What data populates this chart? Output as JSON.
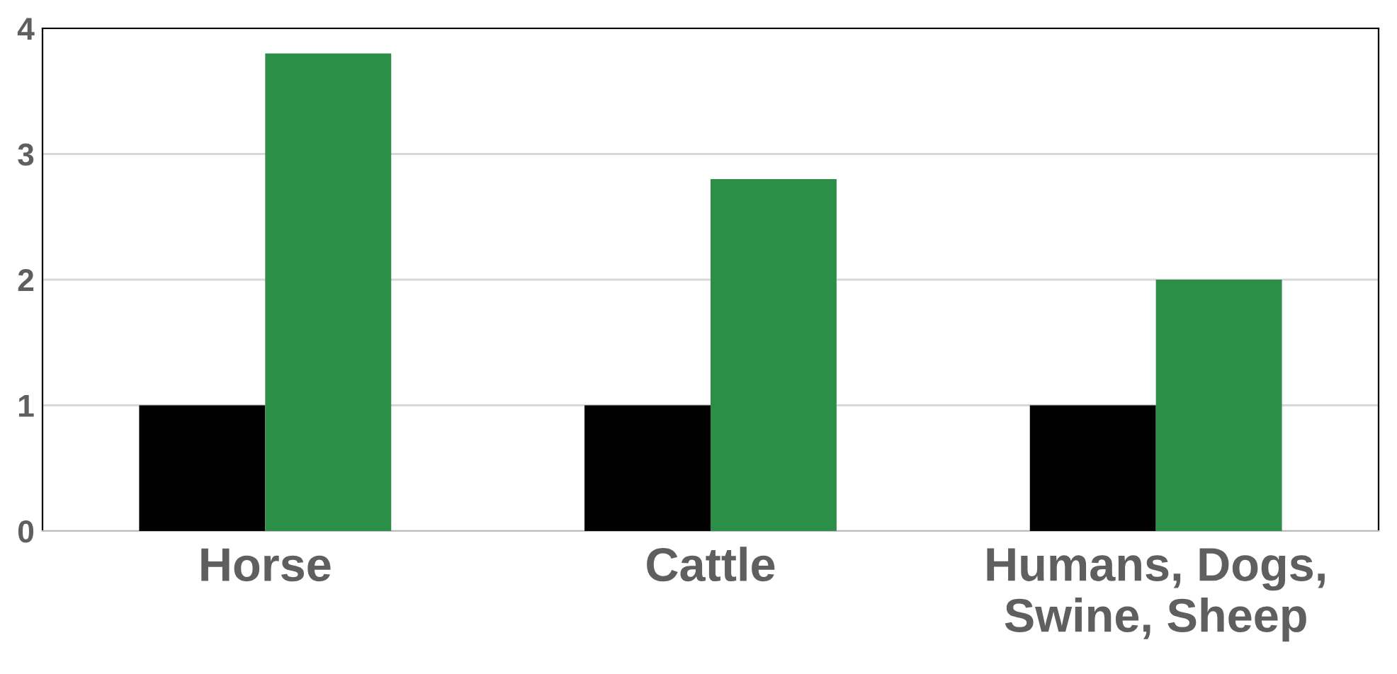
{
  "chart_data": {
    "type": "bar",
    "categories": [
      "Horse",
      "Cattle",
      "Humans, Dogs,\nSwine, Sheep"
    ],
    "series": [
      {
        "color": "#000000",
        "values": [
          1,
          1,
          1
        ]
      },
      {
        "color": "#2c8f47",
        "values": [
          3.8,
          2.8,
          2.0
        ]
      }
    ],
    "ylim": [
      0,
      4
    ],
    "yticks": [
      0,
      1,
      2,
      3,
      4
    ],
    "grid": "y",
    "legend": false
  }
}
